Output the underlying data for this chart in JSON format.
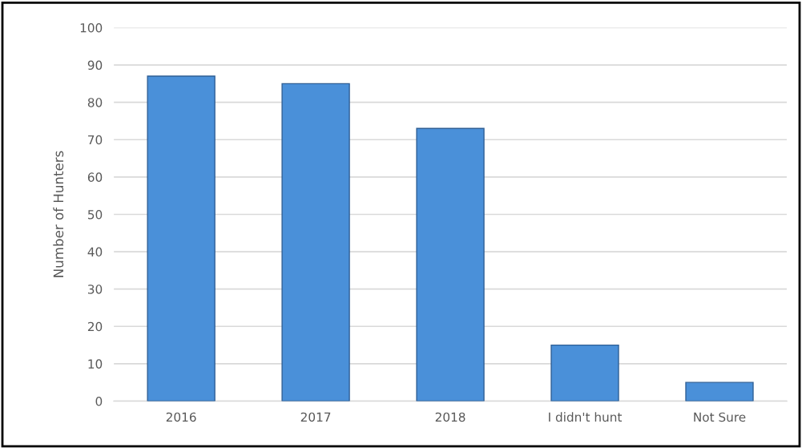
{
  "chart_data": {
    "type": "bar",
    "categories": [
      "2016",
      "2017",
      "2018",
      "I didn't hunt",
      "Not Sure"
    ],
    "values": [
      87,
      85,
      73,
      15,
      5
    ],
    "color": "#4a90d9",
    "ylabel": "Number of Hunters",
    "ylim": [
      0,
      100
    ],
    "yticks": [
      0,
      10,
      20,
      30,
      40,
      50,
      60,
      70,
      80,
      90,
      100
    ],
    "grid": "y",
    "legend": false
  }
}
